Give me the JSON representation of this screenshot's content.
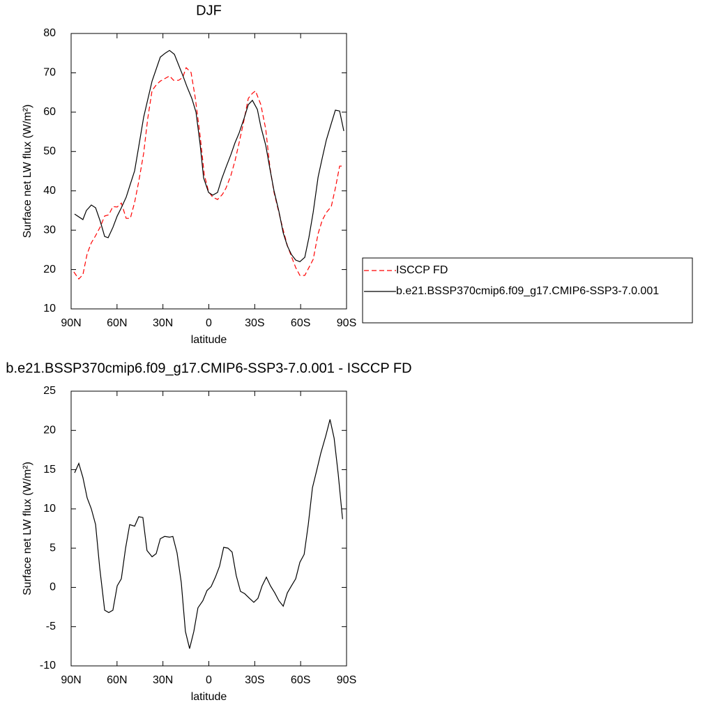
{
  "chart_data": [
    {
      "type": "line",
      "title": "DJF",
      "x_label": "latitude",
      "y_label": "Surface net LW flux (W/m²)",
      "xlim": [
        90,
        -90
      ],
      "xticks": [
        {
          "value": 90,
          "label": "90N"
        },
        {
          "value": 60,
          "label": "60N"
        },
        {
          "value": 30,
          "label": "30N"
        },
        0,
        {
          "value": -30,
          "label": "30S"
        },
        {
          "value": -60,
          "label": "60S"
        },
        {
          "value": -90,
          "label": "90S"
        }
      ],
      "ylim": [
        10,
        80
      ],
      "yticks": [
        10,
        20,
        30,
        40,
        50,
        60,
        70,
        80
      ],
      "legend": "outside-right",
      "series": [
        {
          "name": "ISCCP FD",
          "color": "#ff0000",
          "dash": "dashed",
          "x": [
            88.2,
            85,
            82.3,
            79.5,
            76.8,
            74,
            70.9,
            68.1,
            65.4,
            62.7,
            59.9,
            57.2,
            54,
            51.3,
            48.5,
            45.8,
            42.6,
            39.9,
            37.1,
            34.4,
            31.7,
            28.9,
            25.7,
            23,
            19.8,
            17.1,
            14.8,
            11.6,
            8.9,
            5.7,
            3,
            0.2,
            -2.5,
            -5.7,
            -8.9,
            -11.2,
            -14.4,
            -17.1,
            -19.8,
            -23,
            -25.8,
            -28.5,
            -30.5,
            -34,
            -37.2,
            -39.9,
            -42.6,
            -45.8,
            -48.6,
            -51.3,
            -54,
            -56.8,
            -59.5,
            -62.7,
            -65.4,
            -68.2,
            -71.4,
            -74.1,
            -76.8,
            -80,
            -82.7,
            -85.5,
            -88.2
          ],
          "values": [
            19.4,
            17.6,
            18.7,
            24,
            26.8,
            28.6,
            30.9,
            33.6,
            33.9,
            36,
            35.9,
            36.9,
            33,
            33,
            37.1,
            42.4,
            49.5,
            58.4,
            65.5,
            66.9,
            67.9,
            68.5,
            69.2,
            68.1,
            68.1,
            68.8,
            71.3,
            70.1,
            63.7,
            54,
            44.2,
            39.8,
            38.4,
            37.8,
            39.1,
            40.7,
            43.9,
            47.6,
            52.2,
            58,
            63.5,
            64.8,
            65.4,
            61.9,
            55.7,
            46,
            39.6,
            34.5,
            30,
            26.1,
            23.3,
            20.5,
            18.5,
            18.5,
            20.5,
            22.6,
            29.1,
            32.5,
            34.5,
            36,
            40.7,
            46.3,
            46.3
          ]
        },
        {
          "name": "b.e21.BSSP370cmip6.f09_g17.CMIP6-SSP3-7.0.001",
          "color": "#000000",
          "dash": "solid",
          "x": [
            87.7,
            82.3,
            80,
            76.8,
            74,
            70.9,
            68.1,
            65.8,
            62.7,
            59.9,
            57.2,
            54,
            51.7,
            48.5,
            45.8,
            42.6,
            39.9,
            37.1,
            31.7,
            28.5,
            25.7,
            22.5,
            17.1,
            14.3,
            11.1,
            8.4,
            5.7,
            3.4,
            0.2,
            -2.5,
            -5.7,
            -8.4,
            -11.2,
            -14.4,
            -17.1,
            -19.8,
            -23,
            -25.8,
            -28.5,
            -31.7,
            -34,
            -37.2,
            -39.9,
            -42.6,
            -45.8,
            -48.6,
            -51.3,
            -54,
            -56.8,
            -59.5,
            -62.7,
            -65.4,
            -68.2,
            -71.4,
            -74.1,
            -76.8,
            -80,
            -82.7,
            -85.5,
            -88.2
          ],
          "values": [
            34.1,
            32.7,
            35,
            36.4,
            35.7,
            32.2,
            28.4,
            28.1,
            30.7,
            33.6,
            35.7,
            38.4,
            41.2,
            45.1,
            51.3,
            58.7,
            63.2,
            67.9,
            74,
            75,
            75.7,
            74.7,
            69.4,
            66.5,
            63.5,
            60,
            51.8,
            43.3,
            39.6,
            38.9,
            39.6,
            43,
            46,
            49.2,
            52.2,
            54.7,
            58.4,
            61.9,
            63,
            60.7,
            56.3,
            51.6,
            45.6,
            40,
            34.8,
            29.3,
            26,
            23.8,
            22.4,
            22,
            23.1,
            28.1,
            34.6,
            43.5,
            48.3,
            52.9,
            57.1,
            60.5,
            60.3,
            55.2
          ]
        }
      ]
    },
    {
      "type": "line",
      "title": "b.e21.BSSP370cmip6.f09_g17.CMIP6-SSP3-7.0.001 - ISCCP FD",
      "x_label": "latitude",
      "y_label": "Surface net LW flux (W/m²)",
      "xlim": [
        90,
        -90
      ],
      "xticks": [
        {
          "value": 90,
          "label": "90N"
        },
        {
          "value": 60,
          "label": "60N"
        },
        {
          "value": 30,
          "label": "30N"
        },
        0,
        {
          "value": -30,
          "label": "30S"
        },
        {
          "value": -60,
          "label": "60S"
        },
        {
          "value": -90,
          "label": "90S"
        }
      ],
      "ylim": [
        -10,
        25
      ],
      "yticks": [
        -10,
        -5,
        0,
        5,
        10,
        15,
        20,
        25
      ],
      "series": [
        {
          "color": "#000000",
          "dash": "solid",
          "x": [
            87.7,
            85,
            82.3,
            79.5,
            76.8,
            74,
            71.3,
            68.1,
            65.4,
            62.7,
            59.9,
            57.2,
            54.4,
            51.7,
            48.5,
            45.8,
            43.1,
            40.4,
            37.1,
            34.4,
            31.7,
            28.9,
            25.7,
            23.5,
            20.8,
            18,
            15.3,
            12.6,
            9.8,
            7.1,
            3.9,
            1.2,
            -1.5,
            -4.3,
            -7,
            -9.7,
            -12.5,
            -15.2,
            -17.9,
            -20.7,
            -23.4,
            -26.6,
            -29.4,
            -32.1,
            -34.8,
            -37.6,
            -40.3,
            -43.1,
            -45.8,
            -48.6,
            -51.3,
            -54,
            -56.8,
            -59.5,
            -62.3,
            -65,
            -67.7,
            -70.5,
            -73.2,
            -76.4,
            -79.2,
            -81.9,
            -84.6,
            -87.4
          ],
          "values": [
            14.6,
            15.8,
            14,
            11.4,
            10,
            8,
            2.5,
            -2.9,
            -3.2,
            -2.9,
            0.2,
            1.1,
            5,
            8,
            7.8,
            9,
            8.9,
            4.7,
            3.9,
            4.3,
            6.2,
            6.5,
            6.4,
            6.5,
            4.4,
            0.6,
            -5.6,
            -7.8,
            -5.6,
            -2.6,
            -1.7,
            -0.4,
            0.1,
            1.3,
            2.7,
            5.1,
            5,
            4.5,
            1.5,
            -0.5,
            -0.8,
            -1.4,
            -1.9,
            -1.4,
            0.2,
            1.3,
            0.2,
            -0.7,
            -1.7,
            -2.4,
            -0.7,
            0.2,
            1.1,
            3.2,
            4.2,
            8,
            12.7,
            14.9,
            17.1,
            19.3,
            21.4,
            19,
            14.4,
            8.7
          ]
        }
      ]
    }
  ]
}
